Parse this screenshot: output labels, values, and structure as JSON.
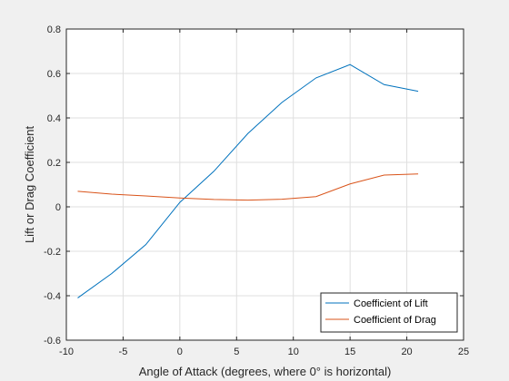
{
  "chart_data": {
    "type": "line",
    "xlabel": "Angle of Attack (degrees, where 0° is horizontal)",
    "ylabel": "Lift or Drag Coefficient",
    "xlim": [
      -10,
      25
    ],
    "ylim": [
      -0.6,
      0.8
    ],
    "xticks": [
      -10,
      -5,
      0,
      5,
      10,
      15,
      20,
      25
    ],
    "yticks": [
      -0.6,
      -0.4,
      -0.2,
      0,
      0.2,
      0.4,
      0.6,
      0.8
    ],
    "xtick_labels": [
      "-10",
      "-5",
      "0",
      "5",
      "10",
      "15",
      "20",
      "25"
    ],
    "ytick_labels": [
      "-0.6",
      "-0.4",
      "-0.2",
      "0",
      "0.2",
      "0.4",
      "0.6",
      "0.8"
    ],
    "grid": true,
    "legend_position": "bottom-right",
    "series": [
      {
        "name": "Coefficient of Lift",
        "color": "#0072BD",
        "x": [
          -9,
          -6,
          -3,
          0,
          3,
          6,
          9,
          12,
          15,
          18,
          21
        ],
        "y": [
          -0.41,
          -0.3,
          -0.17,
          0.02,
          0.16,
          0.33,
          0.47,
          0.58,
          0.64,
          0.55,
          0.52
        ]
      },
      {
        "name": "Coefficient of Drag",
        "color": "#D95319",
        "x": [
          -9,
          -6,
          -3,
          0,
          3,
          6,
          9,
          12,
          15,
          18,
          21
        ],
        "y": [
          0.07,
          0.057,
          0.049,
          0.04,
          0.033,
          0.03,
          0.034,
          0.046,
          0.103,
          0.143,
          0.148
        ]
      }
    ]
  }
}
